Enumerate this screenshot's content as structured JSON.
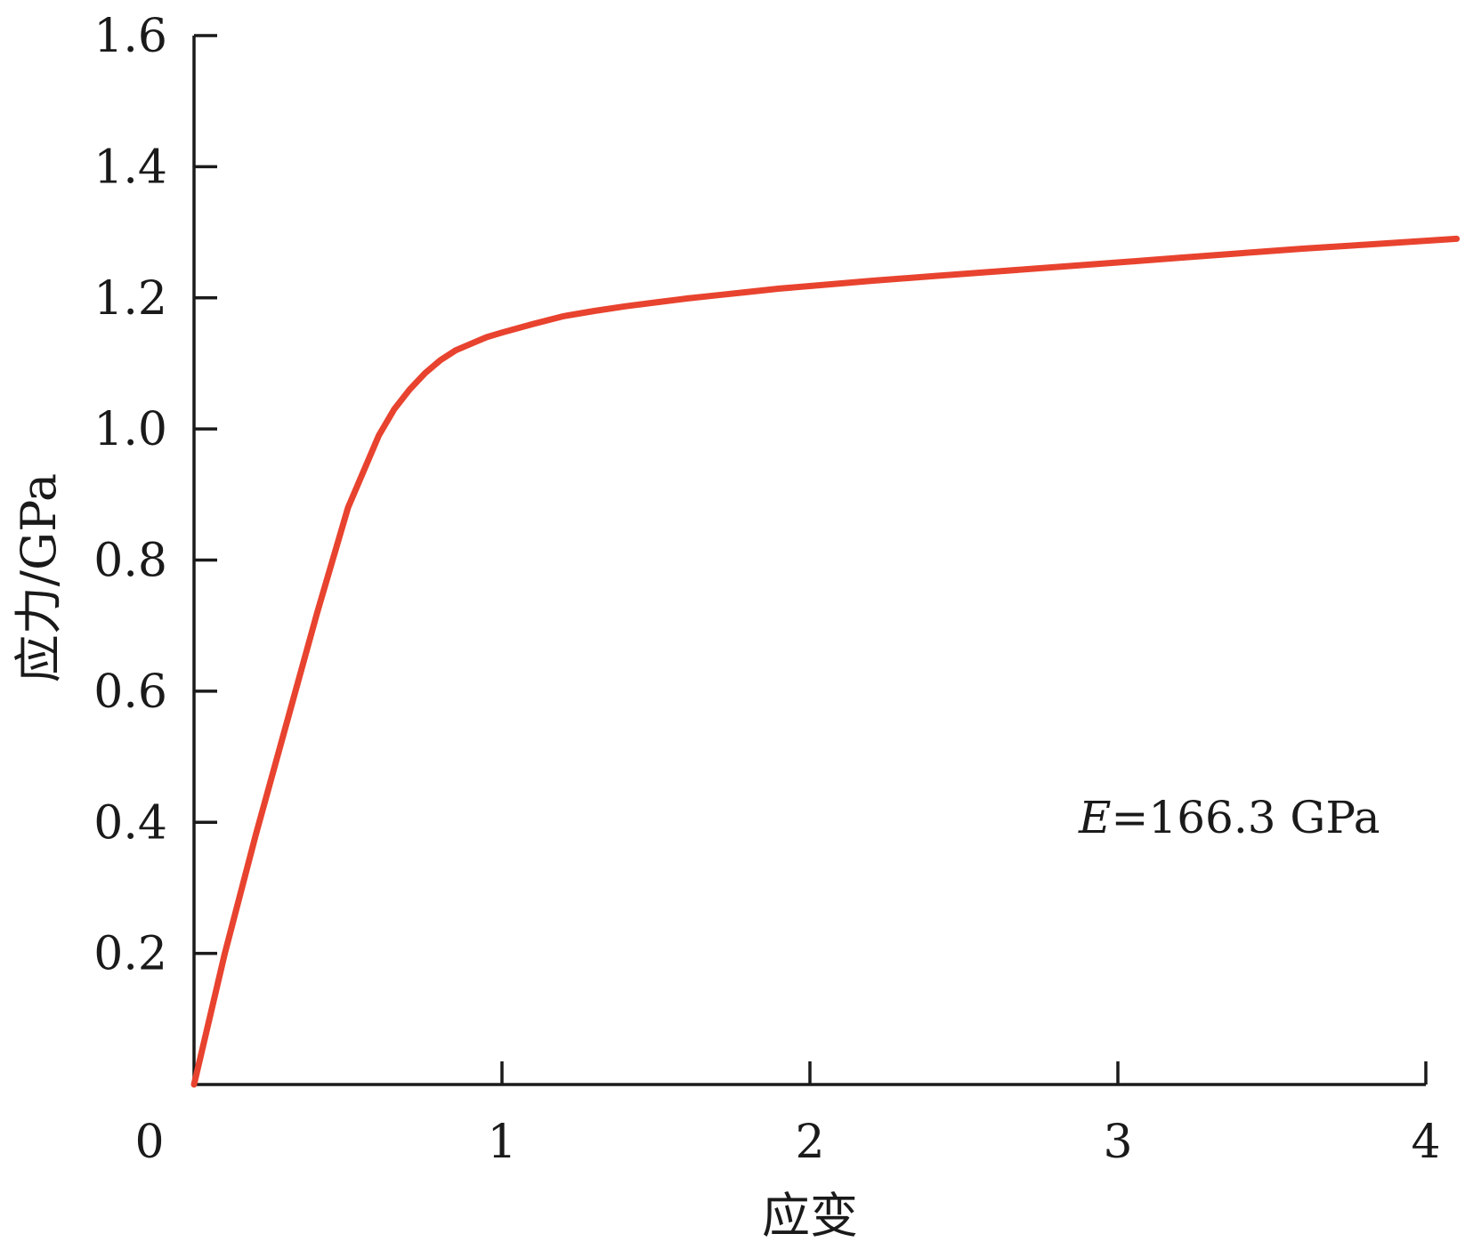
{
  "chart_data": {
    "type": "line",
    "xlabel": "应变",
    "ylabel": "应力/GPa",
    "xlim": [
      0,
      4
    ],
    "ylim": [
      0,
      1.6
    ],
    "x_ticks": [
      0,
      1,
      2,
      3,
      4
    ],
    "x_tick_labels": [
      "0",
      "1",
      "2",
      "3",
      "4"
    ],
    "y_ticks": [
      0.2,
      0.4,
      0.6,
      0.8,
      1.0,
      1.2,
      1.4,
      1.6
    ],
    "y_tick_labels": [
      "0.2",
      "0.4",
      "0.6",
      "0.8",
      "1.0",
      "1.2",
      "1.4",
      "1.6"
    ],
    "grid": false,
    "legend": "none",
    "annotation": {
      "symbol": "E",
      "text": "=166.3 GPa"
    },
    "series": [
      {
        "color": "#e8432f",
        "x": [
          0,
          0.1,
          0.2,
          0.3,
          0.4,
          0.5,
          0.6,
          0.65,
          0.7,
          0.75,
          0.8,
          0.85,
          0.9,
          0.95,
          1.0,
          1.1,
          1.2,
          1.3,
          1.4,
          1.5,
          1.6,
          1.7,
          1.8,
          1.9,
          2.0,
          2.2,
          2.4,
          2.6,
          2.8,
          3.0,
          3.2,
          3.4,
          3.6,
          3.8,
          4.0,
          4.1
        ],
        "y": [
          0,
          0.2,
          0.38,
          0.55,
          0.72,
          0.88,
          0.99,
          1.03,
          1.06,
          1.085,
          1.105,
          1.12,
          1.13,
          1.14,
          1.147,
          1.16,
          1.172,
          1.18,
          1.187,
          1.193,
          1.199,
          1.204,
          1.209,
          1.214,
          1.218,
          1.226,
          1.233,
          1.24,
          1.247,
          1.254,
          1.261,
          1.268,
          1.275,
          1.281,
          1.287,
          1.29
        ]
      }
    ]
  }
}
